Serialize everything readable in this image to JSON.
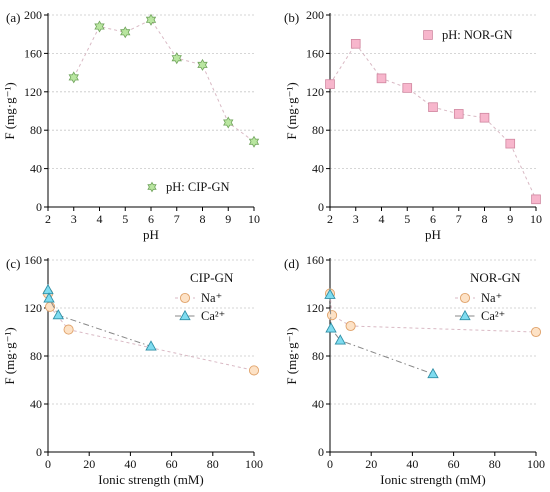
{
  "colors": {
    "cip_star_fill": "#b9e6a0",
    "cip_star_stroke": "#6fa35a",
    "nor_square_fill": "#f7b6cc",
    "nor_square_stroke": "#d0869f",
    "na_fill": "#fde2c6",
    "na_stroke": "#e0a26a",
    "ca_fill": "#7fdcf0",
    "ca_stroke": "#2f8fa6",
    "trend_light": "#d9b9c4",
    "trend_dark": "#888888"
  },
  "chart_data": [
    {
      "panel": "(a)",
      "type": "scatter",
      "xlabel": "pH",
      "ylabel": "F (mg·g⁻¹)",
      "xlim": [
        2,
        10
      ],
      "ylim": [
        0,
        200
      ],
      "xticks": [
        2,
        3,
        4,
        5,
        6,
        7,
        8,
        9,
        10
      ],
      "yticks": [
        0,
        40,
        80,
        120,
        160,
        200
      ],
      "grid": true,
      "legend_position": "bottom-right",
      "series": [
        {
          "name": "pH: CIP-GN",
          "marker": "star",
          "x": [
            3,
            4,
            5,
            6,
            7,
            8,
            9,
            10
          ],
          "y": [
            135,
            188,
            182,
            195,
            155,
            148,
            88,
            68
          ]
        }
      ]
    },
    {
      "panel": "(b)",
      "type": "scatter",
      "xlabel": "pH",
      "ylabel": "F (mg·g⁻¹)",
      "xlim": [
        2,
        10
      ],
      "ylim": [
        0,
        200
      ],
      "xticks": [
        2,
        3,
        4,
        5,
        6,
        7,
        8,
        9,
        10
      ],
      "yticks": [
        0,
        40,
        80,
        120,
        160,
        200
      ],
      "grid": true,
      "legend_position": "top-right",
      "series": [
        {
          "name": "pH: NOR-GN",
          "marker": "square",
          "x": [
            2,
            3,
            4,
            5,
            6,
            7,
            8,
            9,
            10
          ],
          "y": [
            128,
            170,
            134,
            124,
            104,
            97,
            93,
            66,
            8
          ]
        }
      ]
    },
    {
      "panel": "(c)",
      "type": "scatter",
      "title": "CIP-GN",
      "xlabel": "Ionic strength (mM)",
      "ylabel": "F (mg·g⁻¹)",
      "xlim": [
        0,
        100
      ],
      "ylim": [
        0,
        160
      ],
      "xticks": [
        0,
        20,
        40,
        60,
        80,
        100
      ],
      "yticks": [
        0,
        40,
        80,
        120,
        160
      ],
      "grid": true,
      "legend_position": "top-right",
      "series": [
        {
          "name": "Na⁺",
          "marker": "circle",
          "x": [
            0,
            1,
            10,
            100
          ],
          "y": [
            132,
            121,
            102,
            68
          ]
        },
        {
          "name": "Ca²⁺",
          "marker": "triangle",
          "x": [
            0,
            0.5,
            5,
            50
          ],
          "y": [
            135,
            128,
            114,
            88
          ]
        }
      ]
    },
    {
      "panel": "(d)",
      "type": "scatter",
      "title": "NOR-GN",
      "xlabel": "Ionic strength (mM)",
      "ylabel": "F (mg·g⁻¹)",
      "xlim": [
        0,
        100
      ],
      "ylim": [
        0,
        160
      ],
      "xticks": [
        0,
        20,
        40,
        60,
        80,
        100
      ],
      "yticks": [
        0,
        40,
        80,
        120,
        160
      ],
      "grid": true,
      "legend_position": "top-right",
      "series": [
        {
          "name": "Na⁺",
          "marker": "circle",
          "x": [
            0,
            1,
            10,
            100
          ],
          "y": [
            132,
            114,
            105,
            100
          ]
        },
        {
          "name": "Ca²⁺",
          "marker": "triangle",
          "x": [
            0,
            0.5,
            5,
            50
          ],
          "y": [
            131,
            103,
            93,
            65
          ]
        }
      ]
    }
  ]
}
